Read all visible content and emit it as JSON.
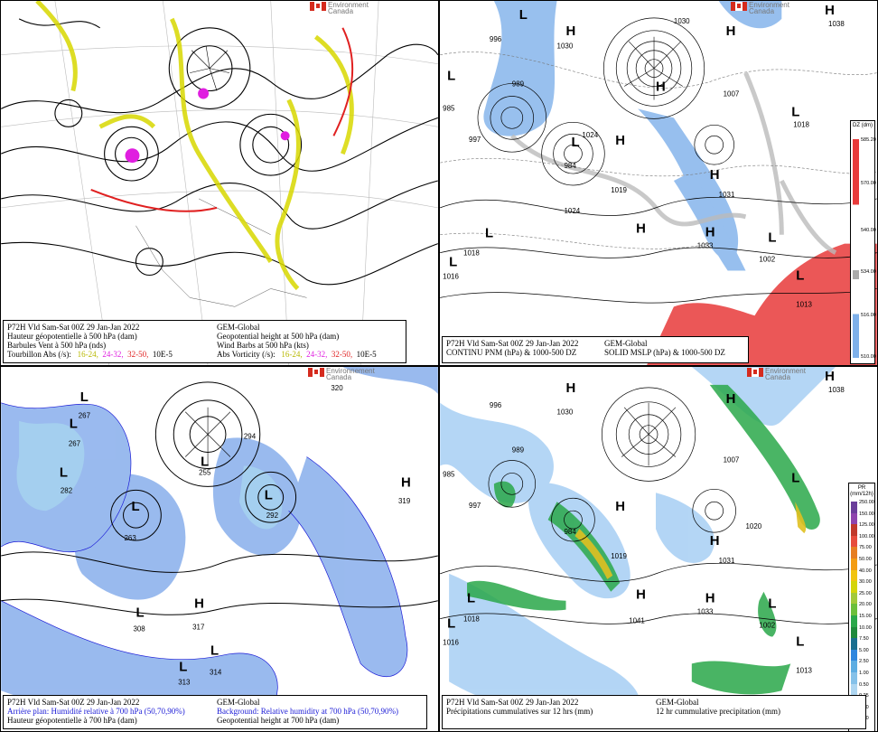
{
  "agency": {
    "line1": "Environment",
    "line2": "Canada",
    "line1_fr": "Environnement",
    "line2_fr": "Canada"
  },
  "panels": {
    "p1": {
      "rows": [
        {
          "l": "P72H Vld Sam-Sat 00Z 29 Jan-Jan 2022",
          "r": "GEM-Global"
        },
        {
          "l": "Hauteur géopotentielle à 500 hPa (dam)",
          "r": "Geopotential height at 500 hPa (dam)"
        },
        {
          "l": "Barbules Vent à 500 hPa (nds)",
          "r": "Wind Barbs at 500 hPa  (kts)"
        }
      ],
      "vort": {
        "fr": "Tourbillon Abs (/s):",
        "en": "Abs Vorticity (/s):",
        "b1": "16-24,",
        "b2": "24-32,",
        "b3": "32-50,",
        "unit": "10E-5"
      }
    },
    "p2": {
      "rows": [
        {
          "l": "P72H Vld Sam-Sat 00Z 29 Jan-Jan 2022",
          "r": "GEM-Global"
        },
        {
          "l": "CONTINU PNM  (hPa) & 1000-500 DZ",
          "r": "SOLID  MSLP (hPa) & 1000-500 DZ"
        }
      ],
      "legend_title": "DZ (dm)",
      "legend_ticks": [
        "585.20",
        "570.00",
        "540.00",
        "534.00",
        "516.00",
        "510.00"
      ],
      "labels": [
        {
          "t": "996"
        },
        {
          "t": "1030"
        },
        {
          "t": "989"
        },
        {
          "t": "1030"
        },
        {
          "t": "1038"
        },
        {
          "t": "985"
        },
        {
          "t": "997"
        },
        {
          "t": "1024"
        },
        {
          "t": "1018"
        },
        {
          "t": "1016"
        },
        {
          "t": "1013"
        },
        {
          "t": "1002"
        },
        {
          "t": "1033"
        },
        {
          "t": "1031"
        },
        {
          "t": "1019"
        },
        {
          "t": "984"
        },
        {
          "t": "1007"
        },
        {
          "t": "1018"
        },
        {
          "t": "1024"
        }
      ]
    },
    "p3": {
      "rows": [
        {
          "l": "P72H Vld Sam-Sat 00Z 29 Jan-Jan 2022",
          "r": "GEM-Global"
        },
        {
          "l": "Arrière plan: Humidité relative à 700 hPa (50,70,90%)",
          "r": "Background: Relative humidity at 700 hPa (50,70,90%)"
        },
        {
          "l": "Hauteur géopotentielle à 700 hPa (dam)",
          "r": "Geopotential height at 700 hPa (dam)"
        }
      ],
      "labels": [
        {
          "t": "267"
        },
        {
          "t": "267"
        },
        {
          "t": "282"
        },
        {
          "t": "263"
        },
        {
          "t": "308"
        },
        {
          "t": "317"
        },
        {
          "t": "314"
        },
        {
          "t": "313"
        },
        {
          "t": "319"
        },
        {
          "t": "294"
        },
        {
          "t": "255"
        },
        {
          "t": "320"
        },
        {
          "t": "292"
        }
      ]
    },
    "p4": {
      "rows": [
        {
          "l": "P72H Vld Sam-Sat 00Z 29 Jan-Jan 2022",
          "r": "GEM-Global"
        },
        {
          "l": "Précipitations cummulatives sur 12 hrs (mm)",
          "r": "12 hr cummulative precipitation       (mm)"
        }
      ],
      "legend_title": "PR (mm/12h)",
      "legend_ticks": [
        "250.00",
        "150.00",
        "125.00",
        "100.00",
        "75.00",
        "50.00",
        "40.00",
        "30.00",
        "25.00",
        "20.00",
        "15.00",
        "10.00",
        "7.50",
        "5.00",
        "2.50",
        "1.00",
        "0.50",
        "0.25",
        "0.10",
        "0.00"
      ],
      "labels": [
        {
          "t": "996"
        },
        {
          "t": "1030"
        },
        {
          "t": "989"
        },
        {
          "t": "1038"
        },
        {
          "t": "985"
        },
        {
          "t": "997"
        },
        {
          "t": "1007"
        },
        {
          "t": "1019"
        },
        {
          "t": "1018"
        },
        {
          "t": "1016"
        },
        {
          "t": "1013"
        },
        {
          "t": "1002"
        },
        {
          "t": "1033"
        },
        {
          "t": "1031"
        },
        {
          "t": "1041"
        },
        {
          "t": "984"
        },
        {
          "t": "1020"
        }
      ]
    }
  },
  "colors": {
    "vort1": "#d8d800",
    "vort2": "#e01ee0",
    "vort3": "#e02020",
    "rh": "#5a8fe0",
    "precip_green": "#2aa84a"
  }
}
